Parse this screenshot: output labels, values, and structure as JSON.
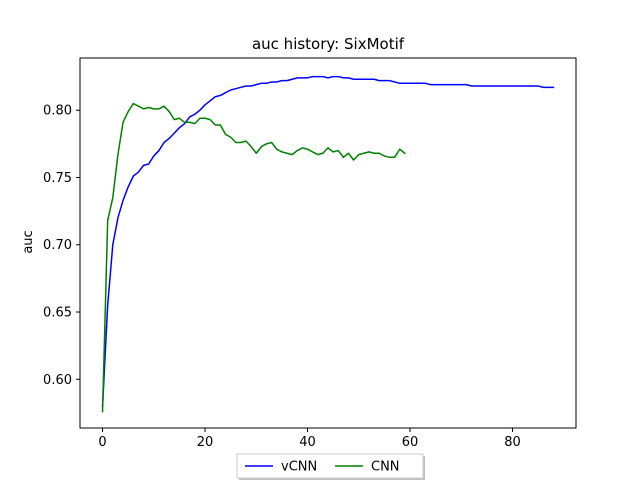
{
  "chart_data": {
    "type": "line",
    "title": "auc history:  SixMotif",
    "xlabel": "",
    "ylabel": "auc",
    "xlim": [
      -4.4,
      92.4
    ],
    "ylim": [
      0.5638,
      0.8388
    ],
    "xticks": [
      0,
      20,
      40,
      60,
      80
    ],
    "yticks": [
      0.6,
      0.65,
      0.7,
      0.75,
      0.8
    ],
    "ytick_labels": [
      "0.60",
      "0.65",
      "0.70",
      "0.75",
      "0.80"
    ],
    "xtick_labels": [
      "0",
      "20",
      "40",
      "60",
      "80"
    ],
    "grid": false,
    "legend_position": "bottom-center-outside",
    "series": [
      {
        "name": "vCNN",
        "color": "#0000ff",
        "x": [
          0,
          1,
          2,
          3,
          4,
          5,
          6,
          7,
          8,
          9,
          10,
          11,
          12,
          13,
          14,
          15,
          16,
          17,
          18,
          19,
          20,
          21,
          22,
          23,
          24,
          25,
          26,
          27,
          28,
          29,
          30,
          31,
          32,
          33,
          34,
          35,
          36,
          37,
          38,
          39,
          40,
          41,
          42,
          43,
          44,
          45,
          46,
          47,
          48,
          49,
          50,
          51,
          52,
          53,
          54,
          55,
          56,
          57,
          58,
          59,
          60,
          61,
          62,
          63,
          64,
          65,
          66,
          67,
          68,
          69,
          70,
          71,
          72,
          73,
          74,
          75,
          76,
          77,
          78,
          79,
          80,
          81,
          82,
          83,
          84,
          85,
          86,
          87,
          88
        ],
        "y": [
          0.58,
          0.655,
          0.7,
          0.72,
          0.733,
          0.743,
          0.751,
          0.754,
          0.759,
          0.76,
          0.766,
          0.77,
          0.776,
          0.779,
          0.783,
          0.787,
          0.79,
          0.795,
          0.797,
          0.8,
          0.804,
          0.807,
          0.81,
          0.811,
          0.813,
          0.815,
          0.816,
          0.817,
          0.818,
          0.818,
          0.819,
          0.82,
          0.82,
          0.821,
          0.821,
          0.822,
          0.822,
          0.823,
          0.824,
          0.824,
          0.824,
          0.825,
          0.825,
          0.825,
          0.824,
          0.825,
          0.825,
          0.824,
          0.824,
          0.823,
          0.823,
          0.823,
          0.823,
          0.823,
          0.822,
          0.822,
          0.822,
          0.821,
          0.82,
          0.82,
          0.82,
          0.82,
          0.82,
          0.82,
          0.819,
          0.819,
          0.819,
          0.819,
          0.819,
          0.819,
          0.819,
          0.819,
          0.818,
          0.818,
          0.818,
          0.818,
          0.818,
          0.818,
          0.818,
          0.818,
          0.818,
          0.818,
          0.818,
          0.818,
          0.818,
          0.818,
          0.817,
          0.817,
          0.817
        ]
      },
      {
        "name": "CNN",
        "color": "#008000",
        "x": [
          0,
          1,
          2,
          3,
          4,
          5,
          6,
          7,
          8,
          9,
          10,
          11,
          12,
          13,
          14,
          15,
          16,
          17,
          18,
          19,
          20,
          21,
          22,
          23,
          24,
          25,
          26,
          27,
          28,
          29,
          30,
          31,
          32,
          33,
          34,
          35,
          36,
          37,
          38,
          39,
          40,
          41,
          42,
          43,
          44,
          45,
          46,
          47,
          48,
          49,
          50,
          51,
          52,
          53,
          54,
          55,
          56,
          57,
          58,
          59
        ],
        "y": [
          0.576,
          0.718,
          0.735,
          0.767,
          0.791,
          0.799,
          0.805,
          0.803,
          0.801,
          0.802,
          0.801,
          0.801,
          0.803,
          0.799,
          0.793,
          0.794,
          0.791,
          0.791,
          0.79,
          0.794,
          0.794,
          0.793,
          0.789,
          0.789,
          0.782,
          0.78,
          0.776,
          0.776,
          0.777,
          0.773,
          0.768,
          0.773,
          0.775,
          0.776,
          0.771,
          0.769,
          0.768,
          0.767,
          0.77,
          0.772,
          0.771,
          0.769,
          0.767,
          0.768,
          0.772,
          0.769,
          0.77,
          0.765,
          0.768,
          0.763,
          0.767,
          0.768,
          0.769,
          0.768,
          0.768,
          0.766,
          0.765,
          0.765,
          0.771,
          0.768
        ]
      }
    ]
  }
}
